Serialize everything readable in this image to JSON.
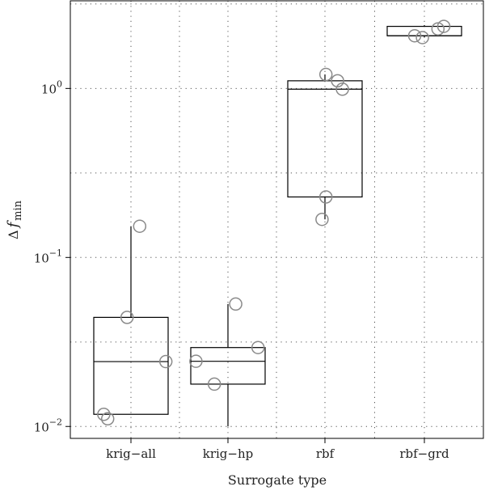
{
  "chart_data": {
    "type": "box",
    "xlabel": "Surrogate type",
    "ylabel": {
      "main": "Δ",
      "italic": "f",
      "sub": "min"
    },
    "yscale": "log",
    "ylim": [
      0.0085,
      3.3
    ],
    "y_ticks": [
      {
        "value": 0.01,
        "base": "10",
        "exp": "−2"
      },
      {
        "value": 0.1,
        "base": "10",
        "exp": "−1"
      },
      {
        "value": 1,
        "base": "10",
        "exp": "0"
      }
    ],
    "grid": true,
    "categories": [
      "krig−all",
      "krig−hp",
      "rbf",
      "rbf−grd"
    ],
    "boxes": [
      {
        "category": "krig−all",
        "whisker_low": 0.0118,
        "q1": 0.0118,
        "median": 0.0242,
        "q3": 0.0442,
        "whisker_high": 0.153
      },
      {
        "category": "krig−hp",
        "whisker_low": 0.01,
        "q1": 0.0178,
        "median": 0.0243,
        "q3": 0.0293,
        "whisker_high": 0.053
      },
      {
        "category": "rbf",
        "whisker_low": 0.168,
        "q1": 0.228,
        "median": 0.99,
        "q3": 1.11,
        "whisker_high": 1.21
      },
      {
        "category": "rbf−grd",
        "whisker_low": 2.0,
        "q1": 2.05,
        "median": 2.05,
        "q3": 2.33,
        "whisker_high": 2.37
      }
    ],
    "points": [
      {
        "category": "krig−all",
        "offset": -0.28,
        "y": 0.0118
      },
      {
        "category": "krig−all",
        "offset": -0.24,
        "y": 0.0111
      },
      {
        "category": "krig−all",
        "offset": -0.04,
        "y": 0.0442
      },
      {
        "category": "krig−all",
        "offset": 0.09,
        "y": 0.153
      },
      {
        "category": "krig−all",
        "offset": 0.36,
        "y": 0.0242
      },
      {
        "category": "krig−hp",
        "offset": -0.33,
        "y": 0.0243
      },
      {
        "category": "krig−hp",
        "offset": -0.14,
        "y": 0.0178
      },
      {
        "category": "krig−hp",
        "offset": 0.08,
        "y": 0.053
      },
      {
        "category": "krig−hp",
        "offset": 0.31,
        "y": 0.0293
      },
      {
        "category": "rbf",
        "offset": -0.03,
        "y": 0.168
      },
      {
        "category": "rbf",
        "offset": 0.01,
        "y": 0.228
      },
      {
        "category": "rbf",
        "offset": 0.01,
        "y": 1.21
      },
      {
        "category": "rbf",
        "offset": 0.13,
        "y": 1.11
      },
      {
        "category": "rbf",
        "offset": 0.18,
        "y": 0.99
      },
      {
        "category": "rbf−grd",
        "offset": -0.1,
        "y": 2.05
      },
      {
        "category": "rbf−grd",
        "offset": -0.02,
        "y": 2.0
      },
      {
        "category": "rbf−grd",
        "offset": 0.14,
        "y": 2.25
      },
      {
        "category": "rbf−grd",
        "offset": 0.2,
        "y": 2.33
      }
    ],
    "colors": {
      "box": "#000000",
      "point": "#8a8a8a",
      "grid": "#555555"
    }
  }
}
